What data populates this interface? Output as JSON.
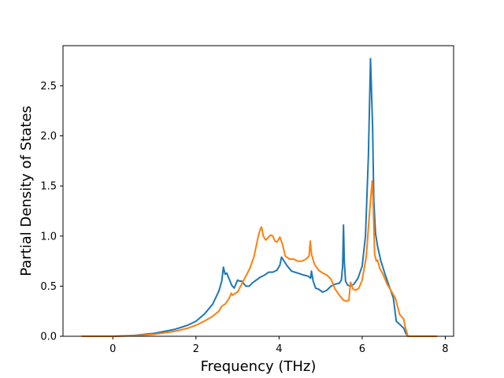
{
  "chart_data": {
    "type": "line",
    "title": "",
    "xlabel": "Frequency (THz)",
    "ylabel": "Partial Density of States",
    "xlim": [
      -1.2,
      8.2
    ],
    "ylim": [
      0.0,
      2.9
    ],
    "xticks": [
      0,
      2,
      4,
      6,
      8
    ],
    "xtick_labels": [
      "0",
      "2",
      "4",
      "6",
      "8"
    ],
    "yticks": [
      0.0,
      0.5,
      1.0,
      1.5,
      2.0,
      2.5
    ],
    "ytick_labels": [
      "0.0",
      "0.5",
      "1.0",
      "1.5",
      "2.0",
      "2.5"
    ],
    "grid": false,
    "legend": "none",
    "series": [
      {
        "color": "#1f77b4",
        "x": [
          -0.75,
          0,
          0.5,
          1.0,
          1.5,
          1.8,
          2.0,
          2.2,
          2.4,
          2.55,
          2.62,
          2.66,
          2.7,
          2.74,
          2.8,
          2.86,
          2.92,
          3.0,
          3.05,
          3.1,
          3.2,
          3.28,
          3.35,
          3.45,
          3.55,
          3.65,
          3.75,
          3.85,
          3.95,
          4.02,
          4.06,
          4.12,
          4.2,
          4.3,
          4.45,
          4.6,
          4.7,
          4.76,
          4.78,
          4.82,
          4.88,
          4.95,
          5.05,
          5.15,
          5.25,
          5.35,
          5.45,
          5.5,
          5.53,
          5.55,
          5.57,
          5.6,
          5.65,
          5.72,
          5.8,
          5.9,
          6.0,
          6.08,
          6.15,
          6.2,
          6.25,
          6.28,
          6.32,
          6.37,
          6.45,
          6.55,
          6.65,
          6.75,
          6.82,
          6.9,
          7.0,
          7.05,
          7.1,
          7.3,
          7.8
        ],
        "y": [
          0.0,
          0.0,
          0.008,
          0.03,
          0.07,
          0.11,
          0.15,
          0.22,
          0.32,
          0.45,
          0.55,
          0.69,
          0.62,
          0.63,
          0.57,
          0.51,
          0.48,
          0.56,
          0.55,
          0.55,
          0.5,
          0.5,
          0.53,
          0.56,
          0.59,
          0.61,
          0.64,
          0.64,
          0.66,
          0.71,
          0.79,
          0.75,
          0.7,
          0.65,
          0.63,
          0.61,
          0.6,
          0.58,
          0.65,
          0.55,
          0.48,
          0.47,
          0.44,
          0.46,
          0.5,
          0.52,
          0.53,
          0.56,
          0.7,
          1.11,
          0.75,
          0.55,
          0.51,
          0.5,
          0.52,
          0.58,
          0.7,
          1.0,
          1.8,
          2.77,
          2.1,
          1.35,
          1.03,
          0.9,
          0.75,
          0.62,
          0.5,
          0.38,
          0.15,
          0.12,
          0.08,
          0.03,
          0.0,
          0.0,
          0.0
        ]
      },
      {
        "color": "#ff7f0e",
        "x": [
          -0.75,
          0,
          0.5,
          1.0,
          1.5,
          1.8,
          2.0,
          2.2,
          2.4,
          2.55,
          2.62,
          2.7,
          2.8,
          2.85,
          2.88,
          2.95,
          3.0,
          3.1,
          3.2,
          3.3,
          3.4,
          3.5,
          3.55,
          3.58,
          3.62,
          3.68,
          3.75,
          3.8,
          3.85,
          3.9,
          3.95,
          4.02,
          4.08,
          4.15,
          4.25,
          4.35,
          4.45,
          4.55,
          4.65,
          4.72,
          4.75,
          4.78,
          4.85,
          4.95,
          5.05,
          5.15,
          5.25,
          5.35,
          5.45,
          5.55,
          5.62,
          5.68,
          5.72,
          5.78,
          5.85,
          5.92,
          6.0,
          6.1,
          6.18,
          6.24,
          6.26,
          6.3,
          6.34,
          6.37,
          6.42,
          6.5,
          6.6,
          6.7,
          6.8,
          6.9,
          7.0,
          7.03,
          7.1,
          7.3,
          7.8
        ],
        "y": [
          0.0,
          0.0,
          0.005,
          0.02,
          0.05,
          0.08,
          0.11,
          0.15,
          0.2,
          0.25,
          0.3,
          0.32,
          0.38,
          0.43,
          0.41,
          0.43,
          0.44,
          0.52,
          0.6,
          0.68,
          0.8,
          1.0,
          1.07,
          1.09,
          1.0,
          0.96,
          0.99,
          1.01,
          1.0,
          0.95,
          0.94,
          0.99,
          0.92,
          0.8,
          0.77,
          0.77,
          0.75,
          0.75,
          0.77,
          0.8,
          0.95,
          0.82,
          0.72,
          0.66,
          0.63,
          0.61,
          0.57,
          0.47,
          0.41,
          0.36,
          0.35,
          0.36,
          0.54,
          0.47,
          0.46,
          0.48,
          0.56,
          0.8,
          1.25,
          1.55,
          1.4,
          0.82,
          0.75,
          0.76,
          0.68,
          0.62,
          0.52,
          0.45,
          0.38,
          0.22,
          0.17,
          0.1,
          0.0,
          0.0,
          0.0
        ]
      }
    ]
  }
}
